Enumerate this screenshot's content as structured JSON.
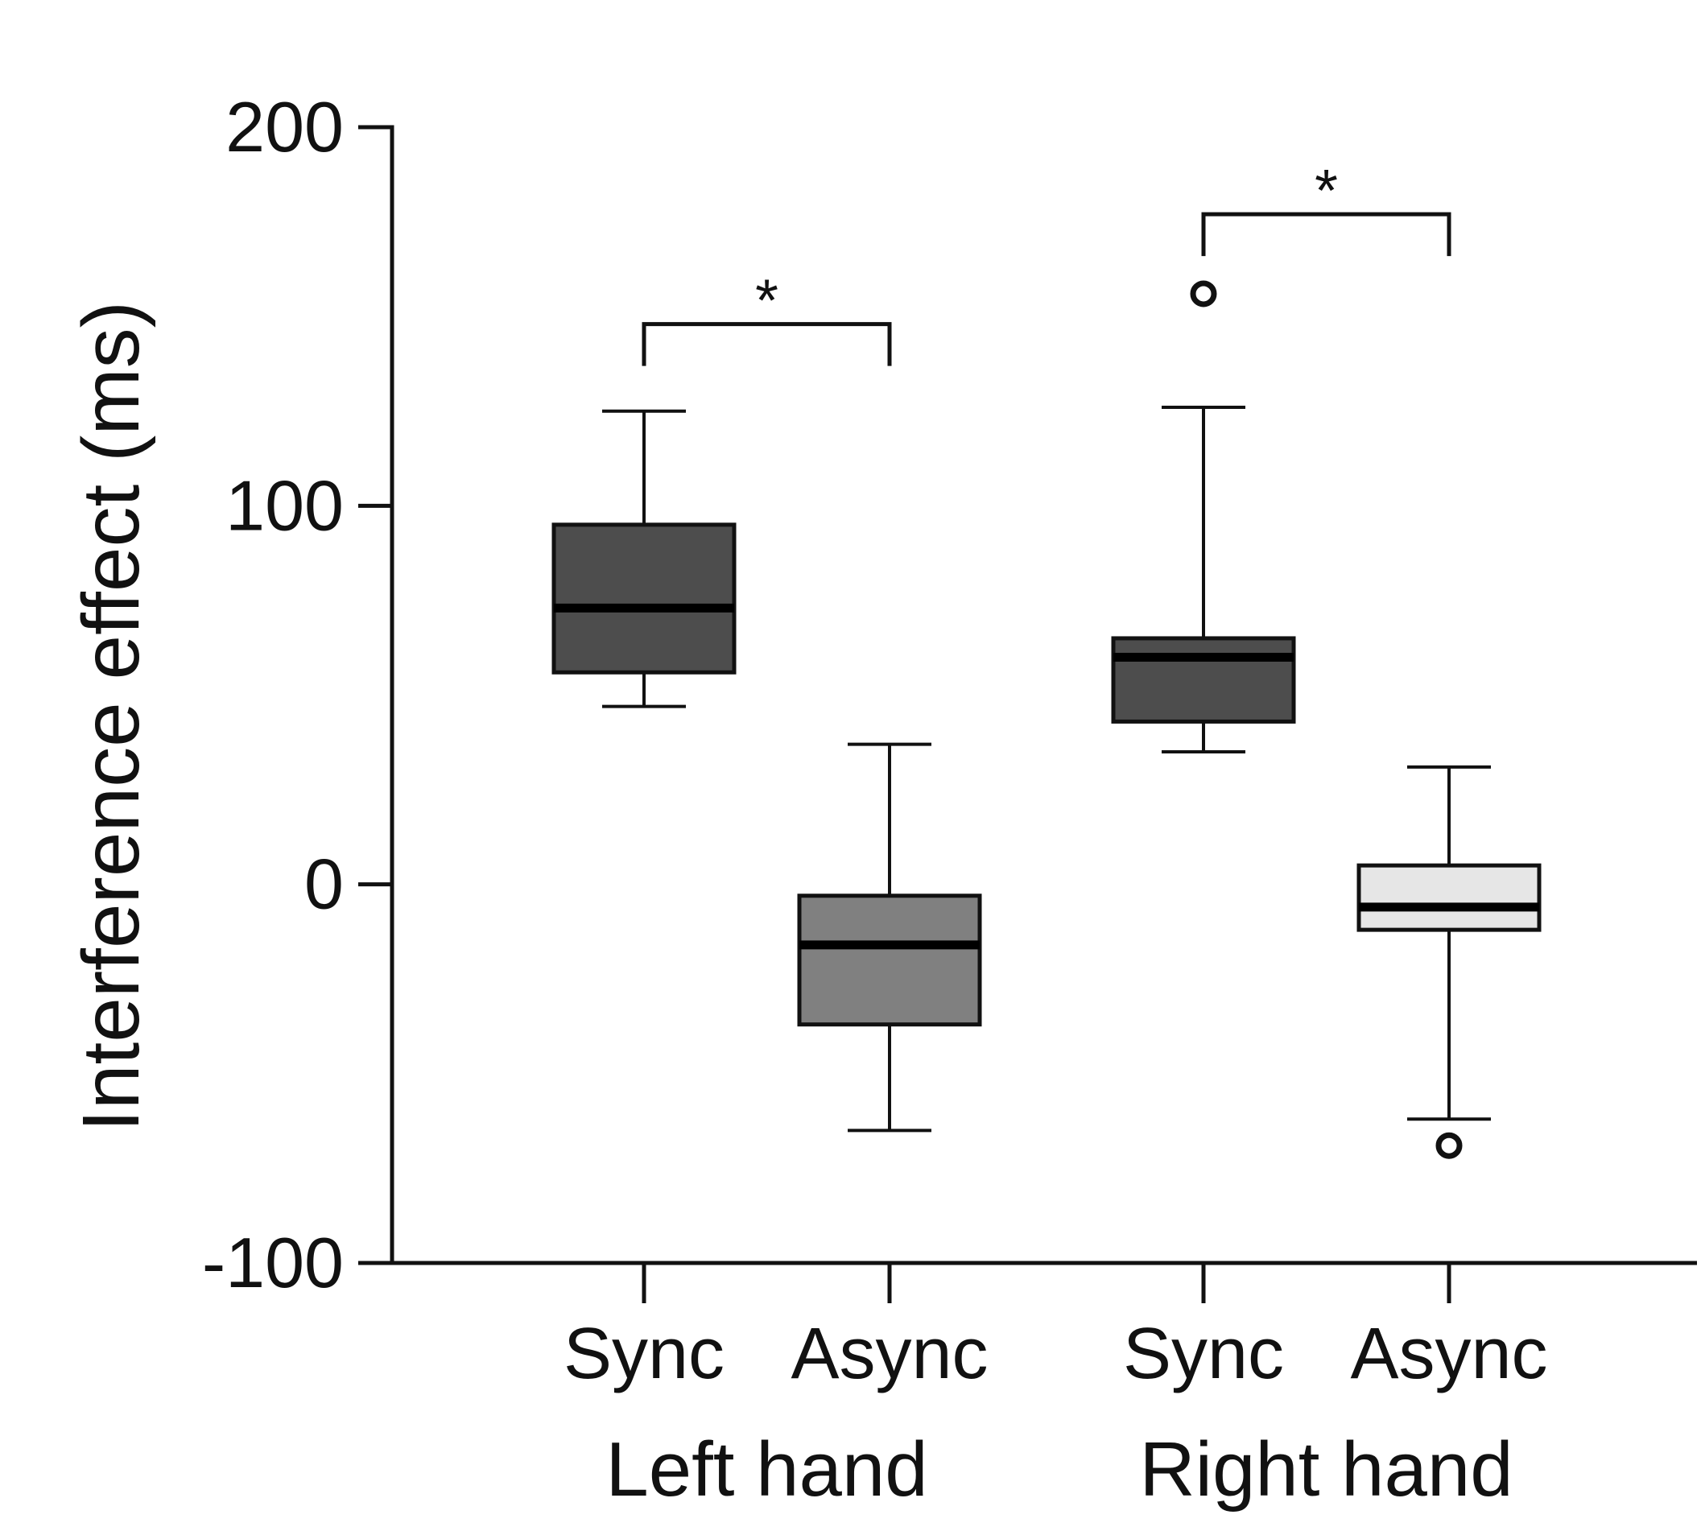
{
  "chart_data": {
    "type": "box",
    "ylabel": "Interference effect (ms)",
    "ylim": [
      -100,
      200
    ],
    "yticks": [
      {
        "value": 200,
        "label": "200"
      },
      {
        "value": 100,
        "label": "100"
      },
      {
        "value": 0,
        "label": "0"
      },
      {
        "value": -100,
        "label": "-100"
      }
    ],
    "grid": false,
    "groups": [
      {
        "label": "Left hand",
        "categories": [
          "Sync",
          "Async"
        ]
      },
      {
        "label": "Right hand",
        "categories": [
          "Sync",
          "Async"
        ]
      }
    ],
    "boxes": [
      {
        "group": "Left hand",
        "category": "Sync",
        "whisker_low": 47,
        "q1": 56,
        "median": 73,
        "q3": 95,
        "whisker_high": 125,
        "outliers": [],
        "fill": "#4d4d4d"
      },
      {
        "group": "Left hand",
        "category": "Async",
        "whisker_low": -65,
        "q1": -37,
        "median": -16,
        "q3": -3,
        "whisker_high": 37,
        "outliers": [],
        "fill": "#808080"
      },
      {
        "group": "Right hand",
        "category": "Sync",
        "whisker_low": 35,
        "q1": 43,
        "median": 60,
        "q3": 65,
        "whisker_high": 126,
        "outliers": [
          156
        ],
        "fill": "#4d4d4d"
      },
      {
        "group": "Right hand",
        "category": "Async",
        "whisker_low": -62,
        "q1": -12,
        "median": -6,
        "q3": 5,
        "whisker_high": 31,
        "outliers": [
          -69
        ],
        "fill": "#e6e6e6"
      }
    ],
    "significance": [
      {
        "group": "Left hand",
        "between": [
          "Sync",
          "Async"
        ],
        "label": "*",
        "level": 148
      },
      {
        "group": "Right hand",
        "between": [
          "Sync",
          "Async"
        ],
        "label": "*",
        "level": 177
      }
    ]
  }
}
